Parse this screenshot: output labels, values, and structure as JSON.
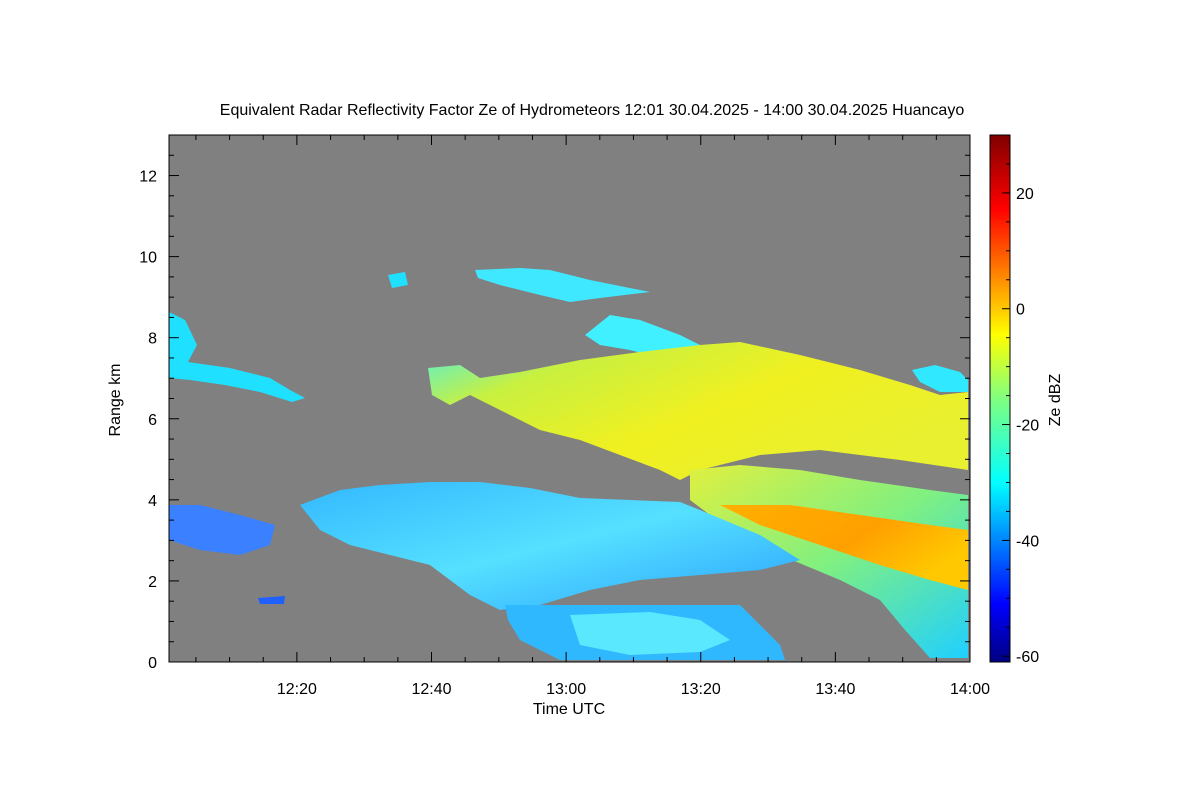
{
  "chart_data": {
    "type": "heatmap",
    "title": "Equivalent Radar Reflectivity Factor Ze of Hydrometeors   12:01 30.04.2025 - 14:00 30.04.2025 Huancayo",
    "xlabel": "Time UTC",
    "ylabel": "Range km",
    "x_range_minutes_utc": [
      721,
      840
    ],
    "x_ticks": [
      {
        "label": "12:20",
        "minutes": 740
      },
      {
        "label": "12:40",
        "minutes": 760
      },
      {
        "label": "13:00",
        "minutes": 780
      },
      {
        "label": "13:20",
        "minutes": 800
      },
      {
        "label": "13:40",
        "minutes": 820
      },
      {
        "label": "14:00",
        "minutes": 840
      }
    ],
    "ylim": [
      0,
      13
    ],
    "y_ticks": [
      {
        "label": "0",
        "value": 0
      },
      {
        "label": "2",
        "value": 2
      },
      {
        "label": "4",
        "value": 4
      },
      {
        "label": "6",
        "value": 6
      },
      {
        "label": "8",
        "value": 8
      },
      {
        "label": "10",
        "value": 10
      },
      {
        "label": "12",
        "value": 12
      }
    ],
    "colorbar": {
      "label": "Ze dBZ",
      "range": [
        -61,
        30
      ],
      "colormap": "jet",
      "ticks": [
        {
          "label": "20",
          "value": 20
        },
        {
          "label": "0",
          "value": 0
        },
        {
          "label": "-20",
          "value": -20
        },
        {
          "label": "-40",
          "value": -40
        },
        {
          "label": "-60",
          "value": -60
        }
      ]
    },
    "no_signal_color": "#808080",
    "grid": false
  }
}
